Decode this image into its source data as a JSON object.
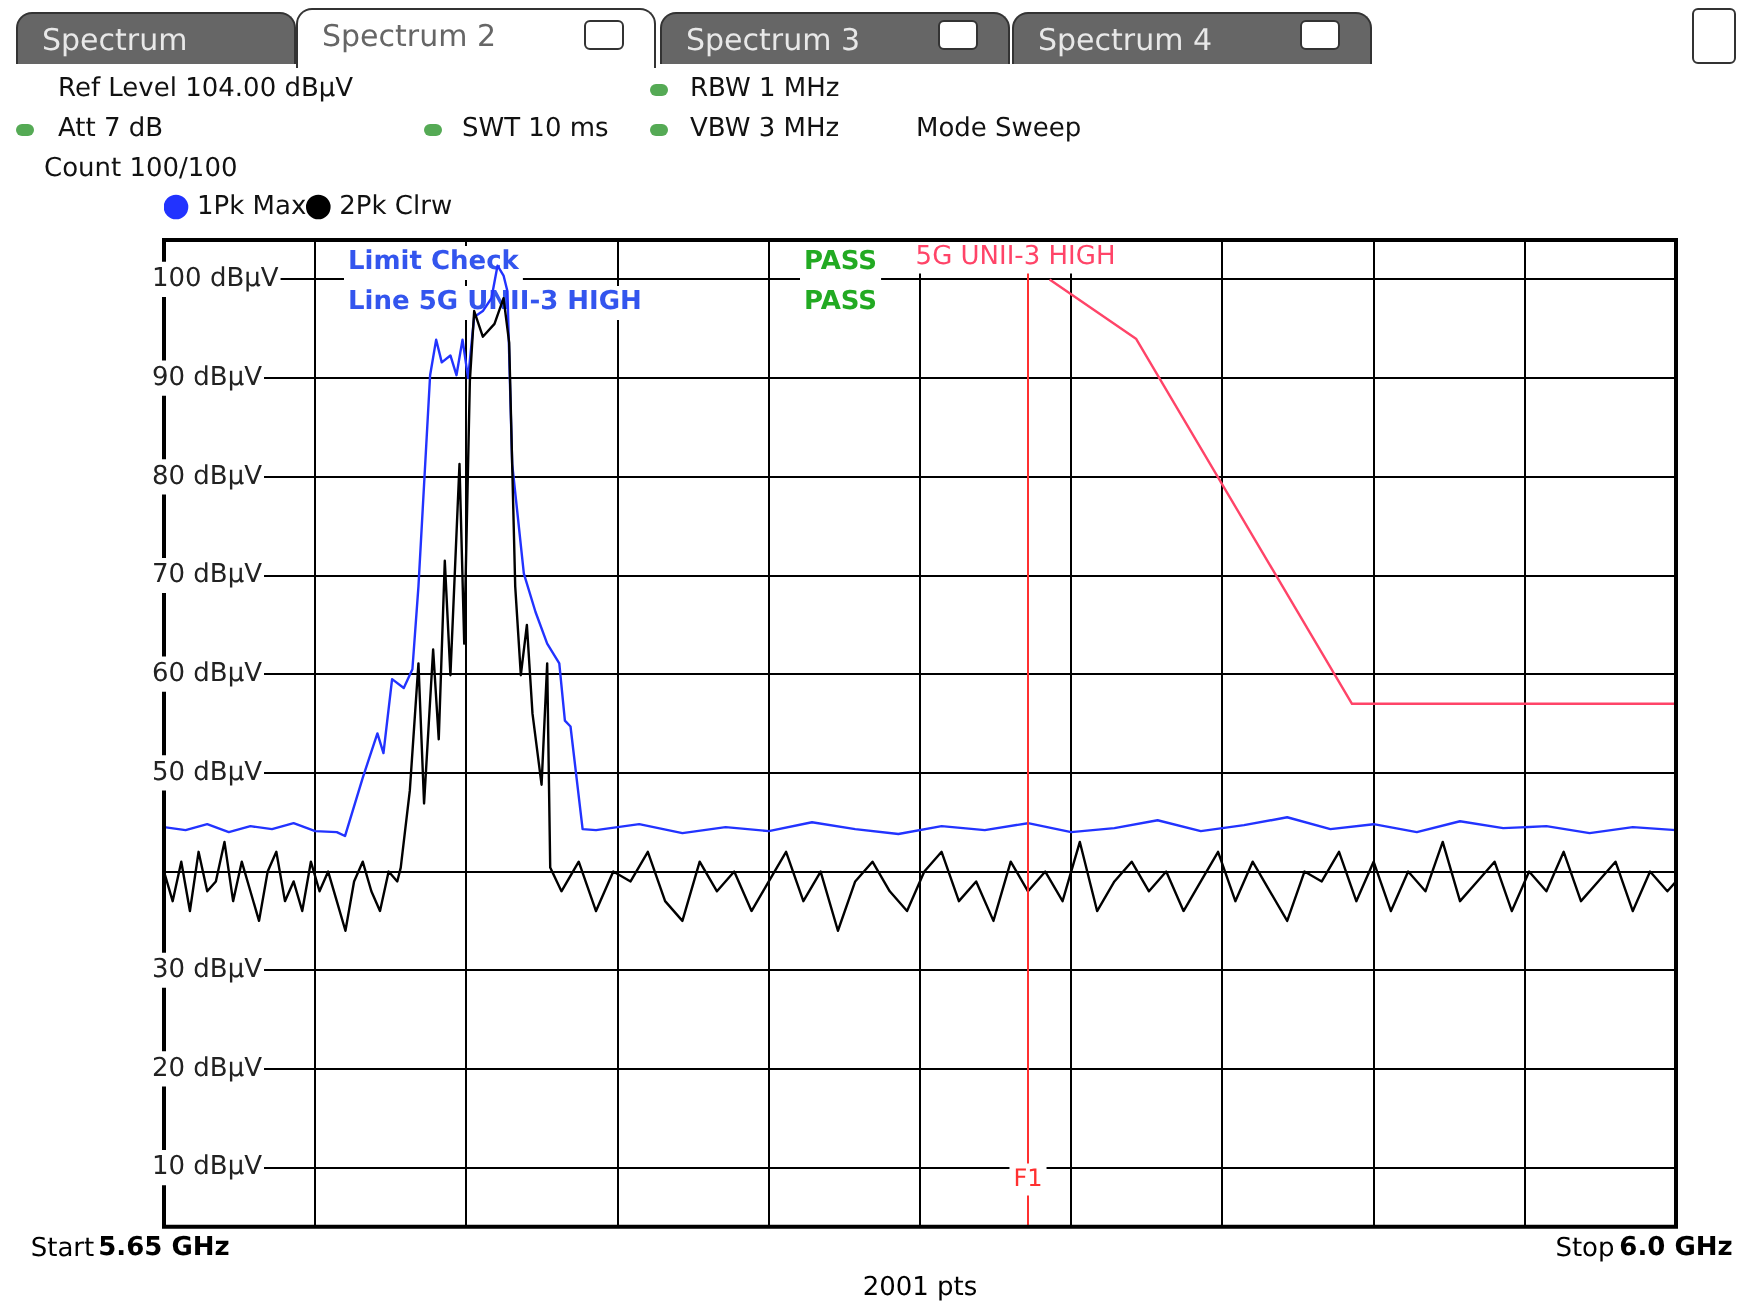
{
  "chart_data": {
    "type": "line",
    "annotations": [
      "Spectrum",
      "Spectrum 2",
      "Spectrum 3",
      "Spectrum 4",
      "Ref Level 104.00 dBµV",
      "RBW 1 MHz",
      "Att 7 dB",
      "SWT 10 ms",
      "VBW 3 MHz",
      "Mode Sweep",
      "Count 100/100",
      "Limit Check",
      "PASS",
      "Line 5G UNII-3 HIGH",
      "PASS",
      "2001 pts",
      "Start",
      "Stop"
    ],
    "xlim": [
      5.65,
      6.0
    ],
    "xticks": [
      {
        "value": 5.65,
        "label": "5.65 GHz"
      },
      {
        "value": 5.685,
        "label": null
      },
      {
        "value": 5.72,
        "label": null
      },
      {
        "value": 5.755,
        "label": null
      },
      {
        "value": 5.79,
        "label": null
      },
      {
        "value": 5.825,
        "label": null
      },
      {
        "value": 5.86,
        "label": null
      },
      {
        "value": 5.895,
        "label": null
      },
      {
        "value": 5.93,
        "label": null
      },
      {
        "value": 5.965,
        "label": null
      },
      {
        "value": 6.0,
        "label": "6.0 GHz"
      }
    ],
    "ylim": [
      4,
      104
    ],
    "yticks": [
      {
        "value": 10,
        "label": "10 dBµV"
      },
      {
        "value": 20,
        "label": "20 dBµV"
      },
      {
        "value": 30,
        "label": "30 dBµV"
      },
      {
        "value": 40,
        "label": null
      },
      {
        "value": 50,
        "label": "50 dBµV"
      },
      {
        "value": 60,
        "label": "60 dBµV"
      },
      {
        "value": 70,
        "label": "70 dBµV"
      },
      {
        "value": 80,
        "label": "80 dBµV"
      },
      {
        "value": 90,
        "label": "90 dBµV"
      },
      {
        "value": 100,
        "label": "100 dBµV"
      }
    ],
    "grid": true,
    "legend": "top left",
    "marker": "none",
    "ref_lines": [
      {
        "axis": "x",
        "value": 5.85,
        "label": "F1",
        "color": "#ff3030"
      }
    ],
    "series": [
      {
        "name": "1Pk Max",
        "color": "#2233ff",
        "x": [
          5.65,
          5.655,
          5.66,
          5.665,
          5.67,
          5.675,
          5.68,
          5.685,
          5.69,
          5.6919,
          5.696,
          5.6994,
          5.7008,
          5.7028,
          5.7055,
          5.7075,
          5.7089,
          5.7116,
          5.713,
          5.7143,
          5.7163,
          5.7177,
          5.7191,
          5.7204,
          5.7218,
          5.7238,
          5.7258,
          5.7272,
          5.7286,
          5.7295,
          5.7306,
          5.7333,
          5.736,
          5.7387,
          5.7415,
          5.7428,
          5.7441,
          5.7455,
          5.7469,
          5.75,
          5.76,
          5.77,
          5.78,
          5.79,
          5.8,
          5.81,
          5.82,
          5.83,
          5.84,
          5.85,
          5.86,
          5.87,
          5.88,
          5.89,
          5.9,
          5.91,
          5.92,
          5.93,
          5.94,
          5.95,
          5.96,
          5.97,
          5.98,
          5.99,
          6.0
        ],
        "values": [
          44.5,
          44.2,
          44.8,
          44.0,
          44.6,
          44.3,
          44.9,
          44.1,
          44.0,
          43.6,
          49.5,
          54,
          52,
          59.5,
          58.6,
          60.5,
          68.9,
          90.3,
          93.9,
          91.6,
          92.3,
          90.3,
          93.9,
          90,
          96.2,
          96.8,
          98.1,
          101.4,
          100.4,
          98.8,
          81.3,
          70.2,
          66.3,
          63.1,
          61.1,
          55.3,
          54.7,
          49.5,
          44.3,
          44.2,
          44.8,
          43.9,
          44.5,
          44.1,
          45.0,
          44.3,
          43.8,
          44.6,
          44.2,
          44.9,
          44.0,
          44.4,
          45.2,
          44.1,
          44.7,
          45.5,
          44.3,
          44.8,
          44.0,
          45.1,
          44.4,
          44.6,
          43.9,
          44.5,
          44.2
        ]
      },
      {
        "name": "2Pk Clrw",
        "color": "#000000",
        "x": [
          5.65,
          5.652,
          5.654,
          5.656,
          5.658,
          5.66,
          5.662,
          5.664,
          5.666,
          5.668,
          5.67,
          5.672,
          5.674,
          5.676,
          5.678,
          5.68,
          5.682,
          5.684,
          5.686,
          5.688,
          5.69,
          5.692,
          5.694,
          5.696,
          5.698,
          5.7,
          5.702,
          5.704,
          5.7048,
          5.7069,
          5.7089,
          5.7102,
          5.7123,
          5.7136,
          5.715,
          5.7163,
          5.7184,
          5.7195,
          5.7208,
          5.7218,
          5.7238,
          5.7265,
          5.7286,
          5.7299,
          5.7313,
          5.7326,
          5.734,
          5.7353,
          5.7374,
          5.7387,
          5.7394,
          5.742,
          5.746,
          5.75,
          5.754,
          5.758,
          5.762,
          5.766,
          5.77,
          5.774,
          5.778,
          5.782,
          5.786,
          5.79,
          5.794,
          5.798,
          5.802,
          5.806,
          5.81,
          5.814,
          5.818,
          5.822,
          5.826,
          5.83,
          5.834,
          5.838,
          5.842,
          5.846,
          5.85,
          5.854,
          5.858,
          5.862,
          5.866,
          5.87,
          5.874,
          5.878,
          5.882,
          5.886,
          5.89,
          5.894,
          5.898,
          5.902,
          5.906,
          5.91,
          5.914,
          5.918,
          5.922,
          5.926,
          5.93,
          5.934,
          5.938,
          5.942,
          5.946,
          5.95,
          5.954,
          5.958,
          5.962,
          5.966,
          5.97,
          5.974,
          5.978,
          5.982,
          5.986,
          5.99,
          5.994,
          5.998,
          6.0
        ],
        "values": [
          40,
          37,
          41,
          36,
          42,
          38,
          39,
          43,
          37,
          41,
          38,
          35,
          40,
          42,
          37,
          39,
          36,
          41,
          38,
          40,
          37,
          34,
          39,
          41,
          38,
          36,
          40,
          39,
          40.4,
          48.2,
          61.1,
          46.9,
          62.5,
          53.4,
          71.5,
          59.9,
          81.3,
          63.1,
          89.7,
          96.8,
          94.2,
          95.5,
          98.1,
          93.6,
          68.9,
          59.9,
          65,
          56,
          48.8,
          61.1,
          40.4,
          38,
          41,
          36,
          40,
          39,
          42,
          37,
          35,
          41,
          38,
          40,
          36,
          39,
          42,
          37,
          40,
          34,
          39,
          41,
          38,
          36,
          40,
          42,
          37,
          39,
          35,
          41,
          38,
          40,
          37,
          43,
          36,
          39,
          41,
          38,
          40,
          36,
          39,
          42,
          37,
          41,
          38,
          35,
          40,
          39,
          42,
          37,
          41,
          36,
          40,
          38,
          43,
          37,
          39,
          41,
          36,
          40,
          38,
          42,
          37,
          39,
          41,
          36,
          40,
          38,
          39
        ]
      },
      {
        "name": "5G UNII-3 HIGH",
        "color": "#ff4468",
        "x": [
          5.855,
          5.875,
          5.925,
          6.0
        ],
        "values": [
          100,
          94,
          57,
          57
        ]
      }
    ]
  }
}
